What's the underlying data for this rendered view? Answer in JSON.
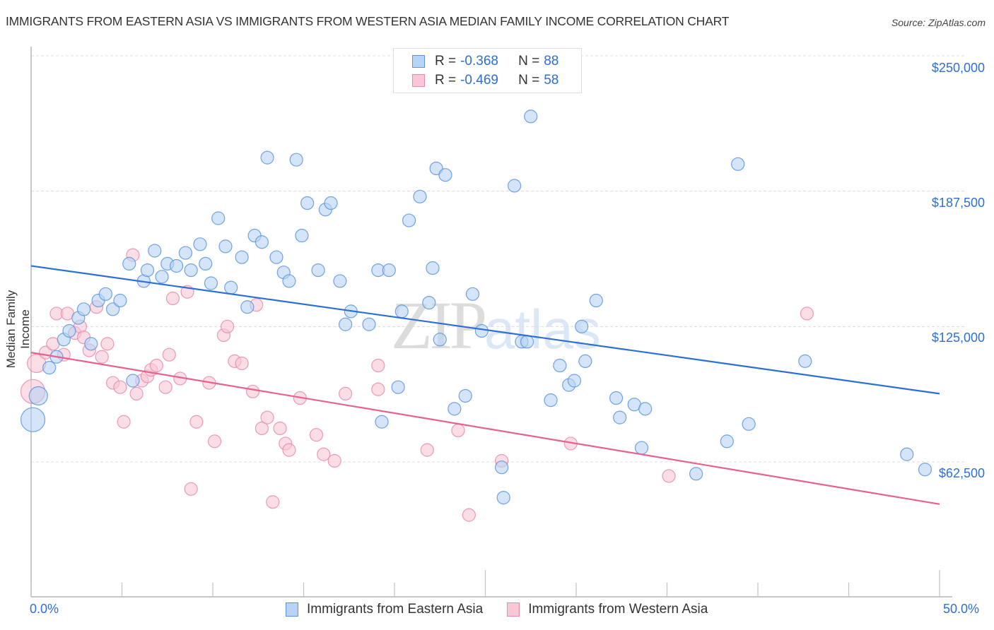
{
  "title": "IMMIGRANTS FROM EASTERN ASIA VS IMMIGRANTS FROM WESTERN ASIA MEDIAN FAMILY INCOME CORRELATION CHART",
  "source": "Source: ZipAtlas.com",
  "watermark": {
    "zip": "ZIP",
    "atlas": "atlas"
  },
  "legend": {
    "rows": [
      {
        "r_label": "R =",
        "r_value": "-0.368",
        "n_label": "N =",
        "n_value": "88"
      },
      {
        "r_label": "R =",
        "r_value": "-0.469",
        "n_label": "N =",
        "n_value": "58"
      }
    ]
  },
  "colors": {
    "eastern_fill": "#b8d3f5",
    "eastern_stroke": "#5b93de",
    "eastern_line": "#2a6fd6",
    "western_fill": "#f9c6d6",
    "western_stroke": "#e88aaa",
    "western_line": "#e8608e",
    "accent_text": "#2e6fd4"
  },
  "chart_data": {
    "type": "scatter",
    "title": "IMMIGRANTS FROM EASTERN ASIA VS IMMIGRANTS FROM WESTERN ASIA MEDIAN FAMILY INCOME CORRELATION CHART",
    "xlabel": "",
    "ylabel": "Median Family Income",
    "xlim": [
      0,
      50
    ],
    "ylim": [
      0,
      255000
    ],
    "x_tick_labels": [
      "0.0%",
      "50.0%"
    ],
    "y_ticks": [
      62500,
      125000,
      187500,
      250000
    ],
    "y_tick_labels": [
      "$62,500",
      "$125,000",
      "$187,500",
      "$250,000"
    ],
    "grid": true,
    "legend_position": "bottom",
    "series": [
      {
        "name": "Immigrants from Eastern Asia",
        "R": -0.368,
        "N": 88,
        "trend": {
          "x": [
            0,
            50
          ],
          "y": [
            153000,
            94000
          ]
        },
        "points": [
          {
            "x": 0.1,
            "y": 82000,
            "big": 2
          },
          {
            "x": 0.4,
            "y": 93000,
            "big": 1
          },
          {
            "x": 1.0,
            "y": 106000
          },
          {
            "x": 1.4,
            "y": 111000
          },
          {
            "x": 1.8,
            "y": 119000
          },
          {
            "x": 2.1,
            "y": 123000
          },
          {
            "x": 2.6,
            "y": 129000
          },
          {
            "x": 2.9,
            "y": 133000
          },
          {
            "x": 3.3,
            "y": 117000
          },
          {
            "x": 3.7,
            "y": 137000
          },
          {
            "x": 4.1,
            "y": 140000
          },
          {
            "x": 4.5,
            "y": 133000
          },
          {
            "x": 4.9,
            "y": 137000
          },
          {
            "x": 5.4,
            "y": 154000
          },
          {
            "x": 5.6,
            "y": 100000
          },
          {
            "x": 6.2,
            "y": 146000
          },
          {
            "x": 6.4,
            "y": 151000
          },
          {
            "x": 6.8,
            "y": 160000
          },
          {
            "x": 7.2,
            "y": 148000
          },
          {
            "x": 7.5,
            "y": 154000
          },
          {
            "x": 8.0,
            "y": 153000
          },
          {
            "x": 8.5,
            "y": 159000
          },
          {
            "x": 8.8,
            "y": 151000
          },
          {
            "x": 9.3,
            "y": 163000
          },
          {
            "x": 9.6,
            "y": 154000
          },
          {
            "x": 9.9,
            "y": 145000
          },
          {
            "x": 10.3,
            "y": 175000
          },
          {
            "x": 10.7,
            "y": 162000
          },
          {
            "x": 11.0,
            "y": 143000
          },
          {
            "x": 11.6,
            "y": 157000
          },
          {
            "x": 11.9,
            "y": 134000
          },
          {
            "x": 12.3,
            "y": 167000
          },
          {
            "x": 12.7,
            "y": 164000
          },
          {
            "x": 13.0,
            "y": 203000
          },
          {
            "x": 13.5,
            "y": 157000
          },
          {
            "x": 13.9,
            "y": 150000
          },
          {
            "x": 14.2,
            "y": 146000
          },
          {
            "x": 14.6,
            "y": 202000
          },
          {
            "x": 14.9,
            "y": 167000
          },
          {
            "x": 15.2,
            "y": 182000
          },
          {
            "x": 15.8,
            "y": 151000
          },
          {
            "x": 16.2,
            "y": 179000
          },
          {
            "x": 16.5,
            "y": 182000
          },
          {
            "x": 17.0,
            "y": 146000
          },
          {
            "x": 17.3,
            "y": 126000
          },
          {
            "x": 17.6,
            "y": 132000
          },
          {
            "x": 18.6,
            "y": 126000
          },
          {
            "x": 19.1,
            "y": 151000
          },
          {
            "x": 19.3,
            "y": 81000
          },
          {
            "x": 19.7,
            "y": 151000
          },
          {
            "x": 20.2,
            "y": 97000
          },
          {
            "x": 20.4,
            "y": 132000
          },
          {
            "x": 20.8,
            "y": 174000
          },
          {
            "x": 21.4,
            "y": 185000
          },
          {
            "x": 21.9,
            "y": 136000
          },
          {
            "x": 22.1,
            "y": 152000
          },
          {
            "x": 22.3,
            "y": 198000
          },
          {
            "x": 22.5,
            "y": 119000
          },
          {
            "x": 22.8,
            "y": 195000
          },
          {
            "x": 23.3,
            "y": 87000
          },
          {
            "x": 23.9,
            "y": 93000
          },
          {
            "x": 24.3,
            "y": 140000
          },
          {
            "x": 24.8,
            "y": 123000
          },
          {
            "x": 25.9,
            "y": 60000
          },
          {
            "x": 26.0,
            "y": 46000
          },
          {
            "x": 26.6,
            "y": 190000
          },
          {
            "x": 27.0,
            "y": 118000
          },
          {
            "x": 27.3,
            "y": 118000
          },
          {
            "x": 27.5,
            "y": 222000
          },
          {
            "x": 28.6,
            "y": 91000
          },
          {
            "x": 29.1,
            "y": 107000
          },
          {
            "x": 29.6,
            "y": 98000
          },
          {
            "x": 29.9,
            "y": 100000
          },
          {
            "x": 30.3,
            "y": 125000
          },
          {
            "x": 30.5,
            "y": 109000
          },
          {
            "x": 31.1,
            "y": 137000
          },
          {
            "x": 32.2,
            "y": 92000
          },
          {
            "x": 32.4,
            "y": 83000
          },
          {
            "x": 33.2,
            "y": 89000
          },
          {
            "x": 33.6,
            "y": 69000
          },
          {
            "x": 33.8,
            "y": 87000
          },
          {
            "x": 36.6,
            "y": 57000
          },
          {
            "x": 38.3,
            "y": 72000
          },
          {
            "x": 38.9,
            "y": 200000
          },
          {
            "x": 39.5,
            "y": 80000
          },
          {
            "x": 42.6,
            "y": 109000
          },
          {
            "x": 48.2,
            "y": 66000
          },
          {
            "x": 49.2,
            "y": 59000
          }
        ]
      },
      {
        "name": "Immigrants from Western Asia",
        "R": -0.469,
        "N": 58,
        "trend": {
          "x": [
            0,
            50
          ],
          "y": [
            113000,
            43000
          ]
        },
        "points": [
          {
            "x": 0.1,
            "y": 95000,
            "big": 2
          },
          {
            "x": 0.3,
            "y": 108000,
            "big": 1
          },
          {
            "x": 0.8,
            "y": 113000
          },
          {
            "x": 1.2,
            "y": 117000
          },
          {
            "x": 1.4,
            "y": 131000
          },
          {
            "x": 1.8,
            "y": 112000
          },
          {
            "x": 2.0,
            "y": 131000
          },
          {
            "x": 2.4,
            "y": 122000
          },
          {
            "x": 2.7,
            "y": 125000
          },
          {
            "x": 2.9,
            "y": 120000
          },
          {
            "x": 3.2,
            "y": 114000
          },
          {
            "x": 3.6,
            "y": 134000
          },
          {
            "x": 3.9,
            "y": 111000
          },
          {
            "x": 4.2,
            "y": 117000
          },
          {
            "x": 4.5,
            "y": 99000
          },
          {
            "x": 4.9,
            "y": 97000
          },
          {
            "x": 5.1,
            "y": 81000
          },
          {
            "x": 5.6,
            "y": 158000
          },
          {
            "x": 5.8,
            "y": 94000
          },
          {
            "x": 6.1,
            "y": 100000
          },
          {
            "x": 6.4,
            "y": 102000
          },
          {
            "x": 6.6,
            "y": 105000
          },
          {
            "x": 6.9,
            "y": 107000
          },
          {
            "x": 7.4,
            "y": 97000
          },
          {
            "x": 7.6,
            "y": 112000
          },
          {
            "x": 7.8,
            "y": 138000
          },
          {
            "x": 8.2,
            "y": 101000
          },
          {
            "x": 8.6,
            "y": 141000
          },
          {
            "x": 8.8,
            "y": 50000
          },
          {
            "x": 9.1,
            "y": 81000
          },
          {
            "x": 9.8,
            "y": 99000
          },
          {
            "x": 10.1,
            "y": 72000
          },
          {
            "x": 10.6,
            "y": 121000
          },
          {
            "x": 10.8,
            "y": 125000
          },
          {
            "x": 11.2,
            "y": 109000
          },
          {
            "x": 11.6,
            "y": 108000
          },
          {
            "x": 12.2,
            "y": 95000
          },
          {
            "x": 12.4,
            "y": 135000
          },
          {
            "x": 12.7,
            "y": 78000
          },
          {
            "x": 13.0,
            "y": 83000
          },
          {
            "x": 13.3,
            "y": 44000
          },
          {
            "x": 13.7,
            "y": 78000
          },
          {
            "x": 14.0,
            "y": 71000
          },
          {
            "x": 14.2,
            "y": 68000
          },
          {
            "x": 14.8,
            "y": 92000
          },
          {
            "x": 15.7,
            "y": 75000
          },
          {
            "x": 16.1,
            "y": 66000
          },
          {
            "x": 16.7,
            "y": 63000
          },
          {
            "x": 17.3,
            "y": 94000
          },
          {
            "x": 19.1,
            "y": 107000
          },
          {
            "x": 19.1,
            "y": 96000
          },
          {
            "x": 21.8,
            "y": 68000
          },
          {
            "x": 23.5,
            "y": 77000
          },
          {
            "x": 24.1,
            "y": 38000
          },
          {
            "x": 25.9,
            "y": 63000
          },
          {
            "x": 29.7,
            "y": 71000
          },
          {
            "x": 35.1,
            "y": 56000
          },
          {
            "x": 42.7,
            "y": 131000
          }
        ]
      }
    ]
  },
  "bottom_legend": {
    "items": [
      {
        "label": "Immigrants from Eastern Asia"
      },
      {
        "label": "Immigrants from Western Asia"
      }
    ]
  }
}
